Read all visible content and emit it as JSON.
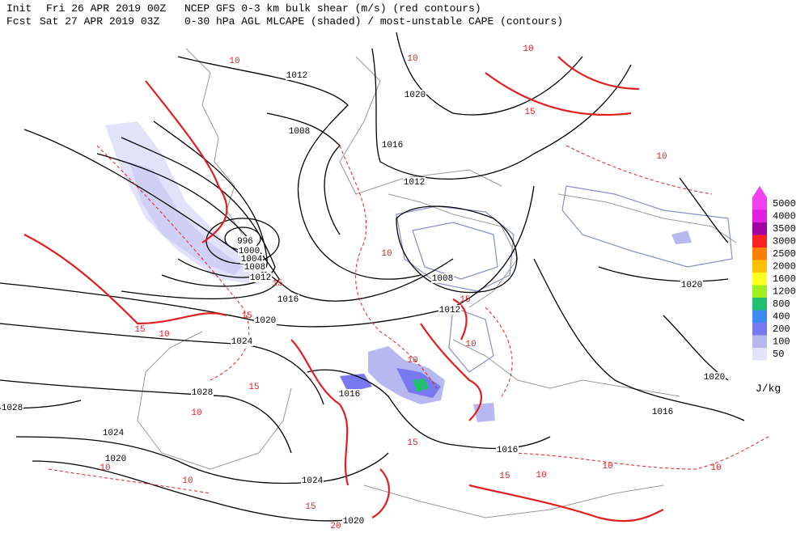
{
  "header": {
    "init_label": "Init",
    "init_time": "Fri 26 APR 2019 00Z",
    "model_title": "NCEP GFS 0-3 km bulk shear (m/s) (red contours)",
    "fcst_label": "Fcst",
    "fcst_time": "Sat 27 APR 2019 03Z",
    "field_title": "0-30 hPa AGL MLCAPE (shaded) / most-unstable CAPE (contours)"
  },
  "legend": {
    "levels": [
      {
        "label": "5000",
        "color": "#f040f0"
      },
      {
        "label": "4000",
        "color": "#e020e0"
      },
      {
        "label": "3500",
        "color": "#a000a0"
      },
      {
        "label": "3000",
        "color": "#ff2020"
      },
      {
        "label": "2500",
        "color": "#ff8000"
      },
      {
        "label": "2000",
        "color": "#ffc000"
      },
      {
        "label": "1600",
        "color": "#ffff20"
      },
      {
        "label": "1200",
        "color": "#a0f020"
      },
      {
        "label": "800",
        "color": "#20c070"
      },
      {
        "label": "400",
        "color": "#3c8cf0"
      },
      {
        "label": "200",
        "color": "#7878f0"
      },
      {
        "label": "100",
        "color": "#b8b8f0"
      },
      {
        "label": "50",
        "color": "#e2e2fa"
      }
    ],
    "unit": "J/kg"
  },
  "pressure_labels": [
    "1012",
    "1020",
    "1008",
    "1016",
    "1012",
    "996",
    "1000",
    "1004",
    "1008",
    "1012",
    "1016",
    "1008",
    "1012",
    "1020",
    "1024",
    "1020",
    "1020",
    "1028",
    "1028",
    "1016",
    "1016",
    "1024",
    "1020",
    "1016",
    "1024",
    "1020"
  ],
  "shear_labels": [
    "10",
    "10",
    "10",
    "15",
    "10",
    "10",
    "15",
    "15",
    "15",
    "10",
    "10",
    "15",
    "10",
    "15",
    "10",
    "10",
    "10",
    "10",
    "10",
    "15",
    "15",
    "15",
    "20",
    "10"
  ]
}
